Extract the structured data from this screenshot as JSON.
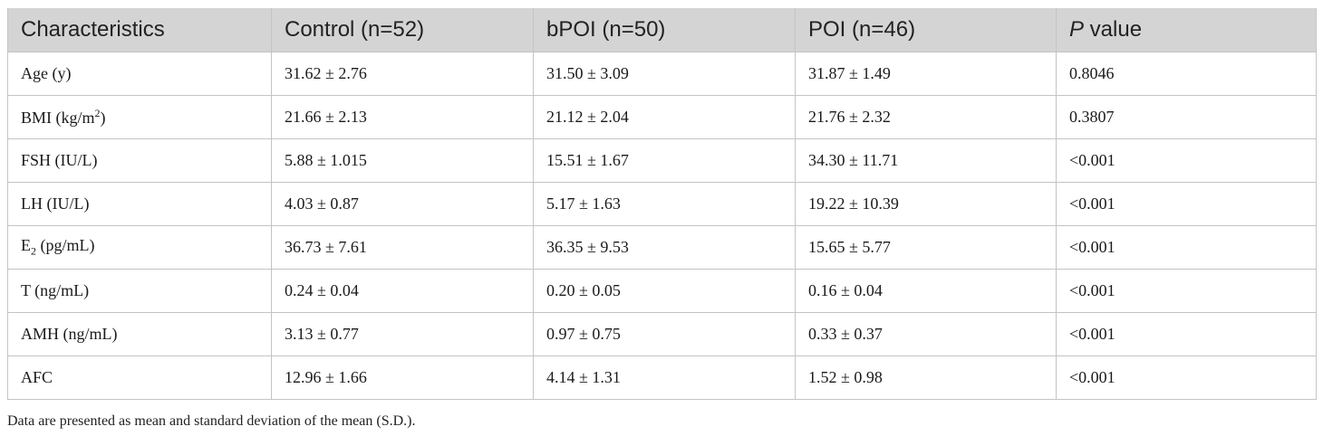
{
  "table": {
    "headers": {
      "characteristics": "Characteristics",
      "control": "Control (n=52)",
      "bpoi": "bPOI (n=50)",
      "poi": "POI (n=46)",
      "p_italic": "P",
      "p_rest": " value"
    },
    "rows": [
      {
        "label": "Age (y)",
        "control": "31.62 ± 2.76",
        "bpoi": "31.50 ± 3.09",
        "poi": "31.87 ± 1.49",
        "p": "0.8046"
      },
      {
        "label_pre": "BMI (kg/m",
        "label_sup": "2",
        "label_post": ")",
        "control": "21.66 ± 2.13",
        "bpoi": "21.12 ± 2.04",
        "poi": "21.76 ± 2.32",
        "p": "0.3807"
      },
      {
        "label": "FSH (IU/L)",
        "control": "5.88 ± 1.015",
        "bpoi": "15.51 ± 1.67",
        "poi": "34.30 ± 11.71",
        "p": "<0.001"
      },
      {
        "label": "LH (IU/L)",
        "control": "4.03 ± 0.87",
        "bpoi": "5.17 ± 1.63",
        "poi": "19.22 ± 10.39",
        "p": "<0.001"
      },
      {
        "label_pre": "E",
        "label_sub": "2",
        "label_post": " (pg/mL)",
        "control": "36.73 ± 7.61",
        "bpoi": "36.35 ± 9.53",
        "poi": "15.65 ± 5.77",
        "p": "<0.001"
      },
      {
        "label": "T (ng/mL)",
        "control": "0.24 ± 0.04",
        "bpoi": "0.20 ± 0.05",
        "poi": "0.16 ± 0.04",
        "p": "<0.001"
      },
      {
        "label": "AMH (ng/mL)",
        "control": "3.13 ± 0.77",
        "bpoi": "0.97 ± 0.75",
        "poi": "0.33 ± 0.37",
        "p": "<0.001"
      },
      {
        "label": "AFC",
        "control": "12.96 ± 1.66",
        "bpoi": "4.14 ± 1.31",
        "poi": "1.52 ± 0.98",
        "p": "<0.001"
      }
    ]
  },
  "footnote": "Data are presented as mean and standard deviation of the mean (S.D.).",
  "colors": {
    "header_background": "#d4d4d4",
    "border": "#c4c4c4"
  }
}
